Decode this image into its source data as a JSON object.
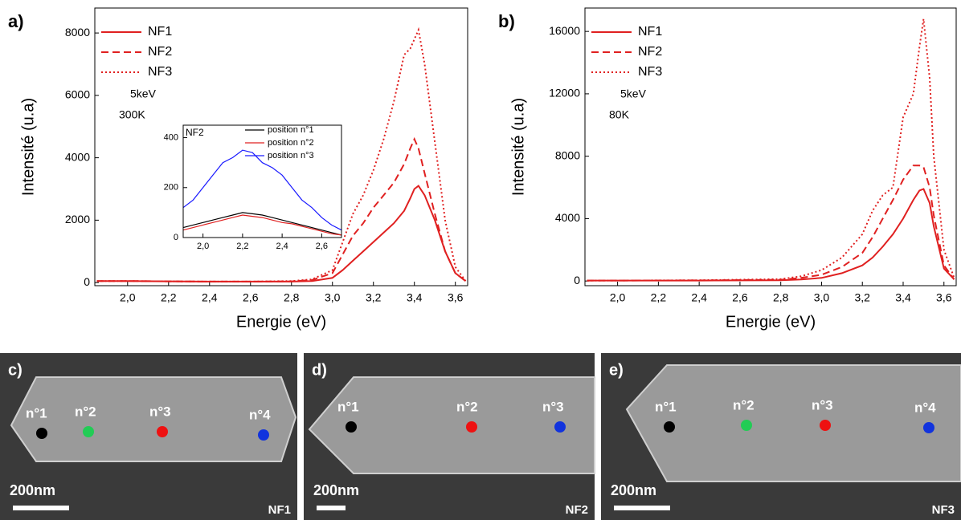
{
  "chart_data": [
    {
      "type": "line",
      "panel": "a)",
      "xlabel": "Energie (eV)",
      "ylabel": "Intensité (u.a)",
      "annotations": [
        "5keV",
        "300K"
      ],
      "x": [
        1.85,
        2.0,
        2.2,
        2.4,
        2.6,
        2.8,
        2.9,
        3.0,
        3.05,
        3.1,
        3.15,
        3.2,
        3.25,
        3.3,
        3.35,
        3.38,
        3.4,
        3.42,
        3.45,
        3.5,
        3.55,
        3.6,
        3.65
      ],
      "series": [
        {
          "name": "NF1",
          "color": "#e02020",
          "style": "solid",
          "values": [
            50,
            50,
            40,
            30,
            30,
            30,
            50,
            150,
            400,
            700,
            1000,
            1300,
            1600,
            1900,
            2300,
            2700,
            3000,
            3100,
            2800,
            2000,
            1000,
            300,
            50
          ]
        },
        {
          "name": "NF2",
          "color": "#e02020",
          "style": "dashed",
          "values": [
            50,
            50,
            40,
            30,
            30,
            40,
            80,
            300,
            900,
            1500,
            1900,
            2400,
            2800,
            3200,
            3800,
            4300,
            4600,
            4300,
            3500,
            2200,
            1000,
            300,
            50
          ]
        },
        {
          "name": "NF3",
          "color": "#e02020",
          "style": "dotted",
          "values": [
            50,
            50,
            40,
            30,
            30,
            50,
            100,
            400,
            1300,
            2200,
            2800,
            3600,
            4600,
            5800,
            7300,
            7500,
            7800,
            8100,
            7000,
            4500,
            2000,
            500,
            50
          ]
        }
      ],
      "xlim": [
        1.84,
        3.66
      ],
      "ylim": [
        -100,
        8800
      ],
      "xticks": [
        {
          "value": 2.0,
          "label": "2,0"
        },
        {
          "value": 2.2,
          "label": "2,2"
        },
        {
          "value": 2.4,
          "label": "2,4"
        },
        {
          "value": 2.6,
          "label": "2,6"
        },
        {
          "value": 2.8,
          "label": "2,8"
        },
        {
          "value": 3.0,
          "label": "3,0"
        },
        {
          "value": 3.2,
          "label": "3,2"
        },
        {
          "value": 3.4,
          "label": "3,4"
        },
        {
          "value": 3.6,
          "label": "3,6"
        }
      ],
      "yticks": [
        0,
        2000,
        4000,
        6000,
        8000
      ],
      "legend": "upper-left"
    },
    {
      "type": "line",
      "panel": "b)",
      "xlabel": "Energie (eV)",
      "ylabel": "Intensité (u.a)",
      "annotations": [
        "5keV",
        "80K"
      ],
      "x": [
        1.85,
        2.0,
        2.4,
        2.8,
        2.9,
        3.0,
        3.1,
        3.2,
        3.25,
        3.3,
        3.35,
        3.4,
        3.45,
        3.48,
        3.5,
        3.53,
        3.55,
        3.6,
        3.65
      ],
      "series": [
        {
          "name": "NF1",
          "color": "#e02020",
          "style": "solid",
          "values": [
            30,
            30,
            30,
            50,
            100,
            200,
            500,
            1000,
            1500,
            2200,
            3000,
            4000,
            5200,
            5800,
            5900,
            5000,
            3500,
            800,
            100
          ]
        },
        {
          "name": "NF2",
          "color": "#e02020",
          "style": "dashed",
          "values": [
            30,
            30,
            40,
            80,
            200,
            400,
            900,
            1800,
            2800,
            4000,
            5200,
            6500,
            7400,
            7400,
            7300,
            6000,
            4200,
            1000,
            100
          ]
        },
        {
          "name": "NF3",
          "color": "#e02020",
          "style": "dotted",
          "values": [
            30,
            30,
            50,
            120,
            300,
            700,
            1500,
            3000,
            4500,
            5500,
            6000,
            10500,
            12000,
            15000,
            16800,
            13000,
            8000,
            2000,
            200
          ]
        }
      ],
      "xlim": [
        1.84,
        3.66
      ],
      "ylim": [
        -300,
        17500
      ],
      "xticks": [
        {
          "value": 2.0,
          "label": "2,0"
        },
        {
          "value": 2.2,
          "label": "2,2"
        },
        {
          "value": 2.4,
          "label": "2,4"
        },
        {
          "value": 2.6,
          "label": "2,6"
        },
        {
          "value": 2.8,
          "label": "2,8"
        },
        {
          "value": 3.0,
          "label": "3,0"
        },
        {
          "value": 3.2,
          "label": "3,2"
        },
        {
          "value": 3.4,
          "label": "3,4"
        },
        {
          "value": 3.6,
          "label": "3,6"
        }
      ],
      "yticks": [
        0,
        4000,
        8000,
        12000,
        16000
      ],
      "legend": "upper-left"
    },
    {
      "type": "line",
      "annotations": [
        "NF2"
      ],
      "x": [
        1.9,
        1.95,
        2.0,
        2.05,
        2.1,
        2.15,
        2.2,
        2.25,
        2.3,
        2.35,
        2.4,
        2.45,
        2.5,
        2.55,
        2.6,
        2.65,
        2.7
      ],
      "series": [
        {
          "name": "position n°1",
          "color": "#000000",
          "style": "solid",
          "values": [
            40,
            50,
            60,
            70,
            80,
            90,
            100,
            95,
            90,
            80,
            70,
            60,
            50,
            40,
            30,
            20,
            10
          ]
        },
        {
          "name": "position n°2",
          "color": "#e02020",
          "style": "solid",
          "values": [
            30,
            40,
            50,
            60,
            70,
            80,
            90,
            85,
            80,
            70,
            60,
            55,
            45,
            35,
            25,
            15,
            10
          ]
        },
        {
          "name": "position n°3",
          "color": "#1a1aff",
          "style": "solid",
          "values": [
            120,
            150,
            200,
            250,
            300,
            320,
            350,
            340,
            300,
            280,
            250,
            200,
            150,
            120,
            80,
            50,
            30
          ]
        }
      ],
      "xlim": [
        1.9,
        2.7
      ],
      "ylim": [
        0,
        450
      ],
      "xticks": [
        {
          "value": 2.0,
          "label": "2,0"
        },
        {
          "value": 2.2,
          "label": "2,2"
        },
        {
          "value": 2.4,
          "label": "2,4"
        },
        {
          "value": 2.6,
          "label": "2,6"
        }
      ],
      "yticks": [
        0,
        200,
        400
      ],
      "legend": "upper-right"
    }
  ],
  "images": [
    {
      "panel": "c)",
      "name": "NF1",
      "scale": "200nm",
      "points": [
        {
          "label": "n°1",
          "color": "#000000"
        },
        {
          "label": "n°2",
          "color": "#22cc55"
        },
        {
          "label": "n°3",
          "color": "#ee1111"
        },
        {
          "label": "n°4",
          "color": "#1133dd"
        }
      ]
    },
    {
      "panel": "d)",
      "name": "NF2",
      "scale": "200nm",
      "points": [
        {
          "label": "n°1",
          "color": "#000000"
        },
        {
          "label": "n°2",
          "color": "#ee1111"
        },
        {
          "label": "n°3",
          "color": "#1133dd"
        }
      ]
    },
    {
      "panel": "e)",
      "name": "NF3",
      "scale": "200nm",
      "points": [
        {
          "label": "n°1",
          "color": "#000000"
        },
        {
          "label": "n°2",
          "color": "#22cc55"
        },
        {
          "label": "n°3",
          "color": "#ee1111"
        },
        {
          "label": "n°4",
          "color": "#1133dd"
        }
      ]
    }
  ]
}
